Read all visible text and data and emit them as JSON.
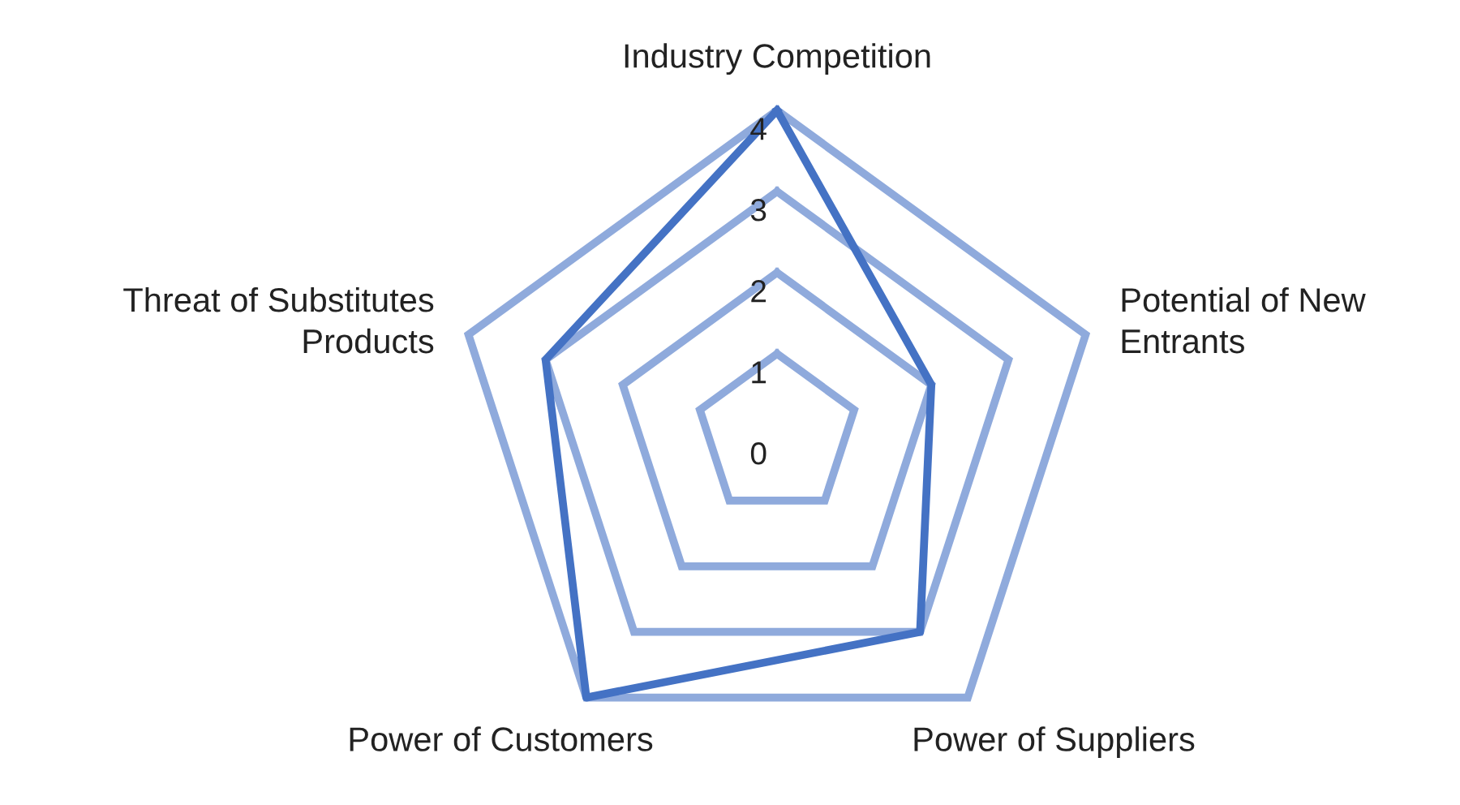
{
  "chart_data": {
    "type": "radar",
    "categories": [
      "Industry Competition",
      "Potential of New\nEntrants",
      "Power of Suppliers",
      "Power of Customers",
      "Threat of Substitutes\nProducts"
    ],
    "series": [
      {
        "color": "#4472c4",
        "values": [
          4,
          2,
          3,
          4,
          3
        ]
      }
    ],
    "ylim": [
      0,
      4
    ],
    "yticks": [
      0,
      1,
      2,
      3,
      4
    ],
    "grid": true,
    "legend": false
  }
}
